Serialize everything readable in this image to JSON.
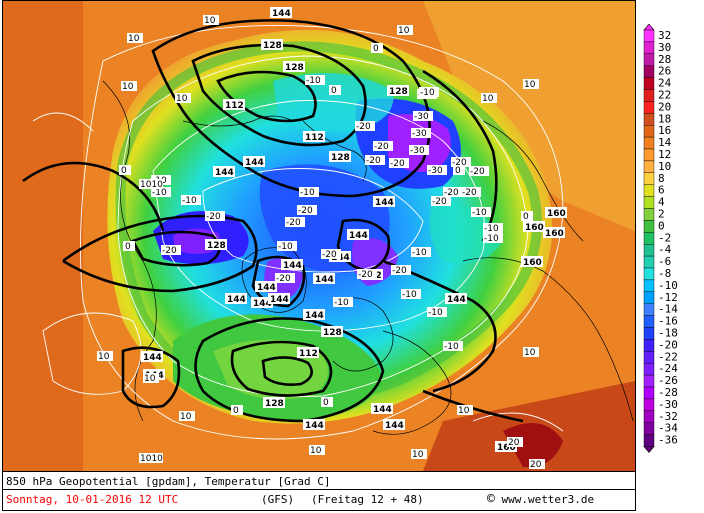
{
  "map": {
    "colors": {
      "ocean_warm": "#e0701c",
      "land_warm": "#f0a030",
      "green": "#30c040",
      "cyan": "#00e0e0",
      "blue": "#2060ff",
      "purple": "#a020ff",
      "coastline": "#000000",
      "isotherm": "#ffffff",
      "geopotential": "#000000"
    },
    "geopotential_labels": [
      "144",
      "144",
      "144",
      "144",
      "144",
      "144",
      "144",
      "144",
      "144",
      "144",
      "144",
      "144",
      "144",
      "144",
      "144",
      "144",
      "144",
      "144",
      "144",
      "128",
      "128",
      "128",
      "128",
      "128",
      "128",
      "128",
      "112",
      "112",
      "112",
      "112",
      "160",
      "160",
      "160",
      "160",
      "160"
    ],
    "temperature_labels": [
      "-30",
      "-30",
      "-30",
      "-30",
      "-20",
      "-20",
      "-20",
      "-20",
      "-20",
      "-20",
      "-20",
      "-20",
      "-20",
      "-20",
      "-20",
      "-20",
      "-20",
      "-20",
      "-20",
      "-20",
      "-20",
      "-20",
      "-10",
      "-10",
      "-10",
      "-10",
      "-10",
      "-10",
      "-10",
      "-10",
      "-10",
      "-10",
      "-10",
      "-10",
      "-10",
      "-10",
      "-10",
      "0",
      "0",
      "0",
      "0",
      "0",
      "0",
      "0",
      "0",
      "10",
      "10",
      "10",
      "10",
      "10",
      "10",
      "10",
      "10",
      "10",
      "10",
      "10",
      "10",
      "10",
      "10",
      "20",
      "20",
      "1010",
      "1010"
    ]
  },
  "legend": {
    "values": [
      32,
      30,
      28,
      26,
      24,
      22,
      20,
      18,
      16,
      14,
      12,
      10,
      8,
      6,
      4,
      2,
      0,
      -2,
      -4,
      -6,
      -8,
      -10,
      -12,
      -14,
      -16,
      -18,
      -20,
      -22,
      -24,
      -26,
      -28,
      -30,
      -32,
      -34,
      -36
    ],
    "colors": [
      "#ff30ff",
      "#e020d0",
      "#c01aa8",
      "#a00060",
      "#c00020",
      "#e02020",
      "#ff2020",
      "#d05020",
      "#e06818",
      "#f08020",
      "#ff9a30",
      "#ffb040",
      "#ffd040",
      "#e0e020",
      "#b0e020",
      "#80d040",
      "#40c040",
      "#20c060",
      "#20c090",
      "#20d0b0",
      "#20e0e0",
      "#00c0ff",
      "#00a0ff",
      "#4080ff",
      "#2060ff",
      "#2040ff",
      "#4020ff",
      "#6020ff",
      "#8020ff",
      "#a020ff",
      "#b000ff",
      "#c000e0",
      "#a000c0",
      "#8000a0",
      "#600080"
    ]
  },
  "caption": {
    "line1": "850 hPa Geopotential [gpdam], Temperatur [Grad C]",
    "line2": "Sonntag, 10-01-2016  12 UTC",
    "model": "(GFS)",
    "runinfo": "(Freitag 12 + 48)",
    "copyright_symbol": "©",
    "copyright": "www.wetter3.de"
  }
}
